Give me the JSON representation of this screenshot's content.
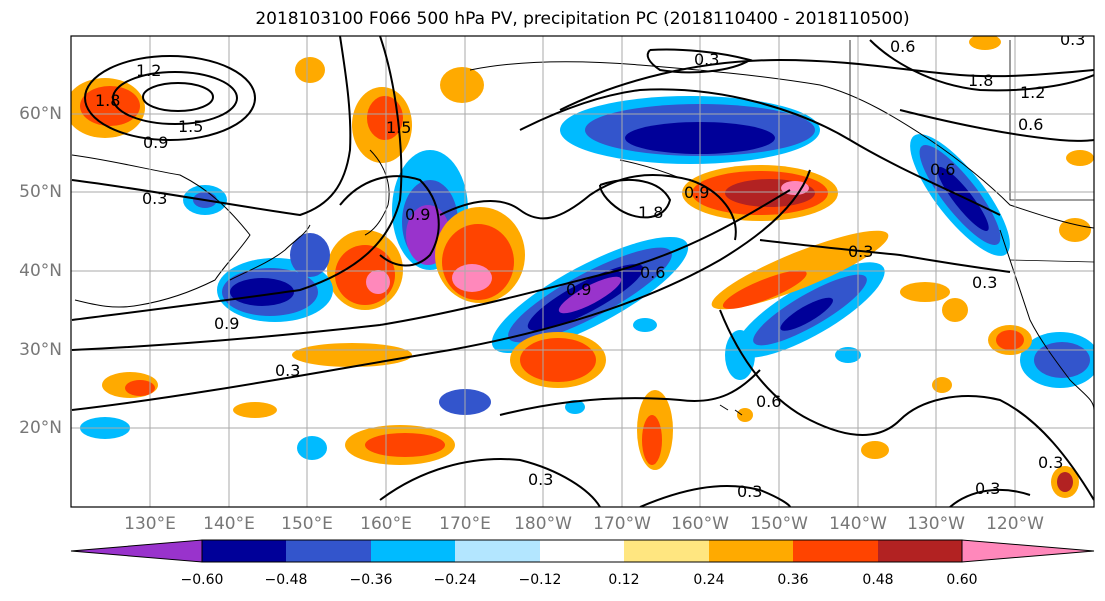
{
  "title": "2018103100 F066 500 hPa PV, precipitation PC (2018110400 - 2018110500)",
  "latitude_labels": [
    "60°N",
    "50°N",
    "40°N",
    "30°N",
    "20°N"
  ],
  "longitude_labels": [
    "130°E",
    "140°E",
    "150°E",
    "160°E",
    "170°E",
    "180°W",
    "170°W",
    "160°W",
    "150°W",
    "140°W",
    "130°W",
    "120°W"
  ],
  "contour_labels": [
    "1.2",
    "1.8",
    "0.9",
    "1.5",
    "0.3",
    "0.9",
    "0.3",
    "0.9",
    "1.5",
    "0.9",
    "1.8",
    "0.9",
    "0.6",
    "0.3",
    "0.3",
    "0.3",
    "0.6",
    "0.3",
    "0.3",
    "0.3",
    "0.3",
    "0.6",
    "1.8",
    "1.2",
    "0.6",
    "0.3",
    "0.6"
  ],
  "colorbar": {
    "tick_labels": [
      "−0.60",
      "−0.48",
      "−0.36",
      "−0.24",
      "−0.12",
      "0.12",
      "0.24",
      "0.36",
      "0.48",
      "0.60"
    ],
    "colors": [
      "#9933cc",
      "#000099",
      "#3355cc",
      "#00bbff",
      "#b3e6ff",
      "#ffffff",
      "#ffe680",
      "#ffaa00",
      "#ff4400",
      "#b22222",
      "#ff88bb"
    ]
  }
}
